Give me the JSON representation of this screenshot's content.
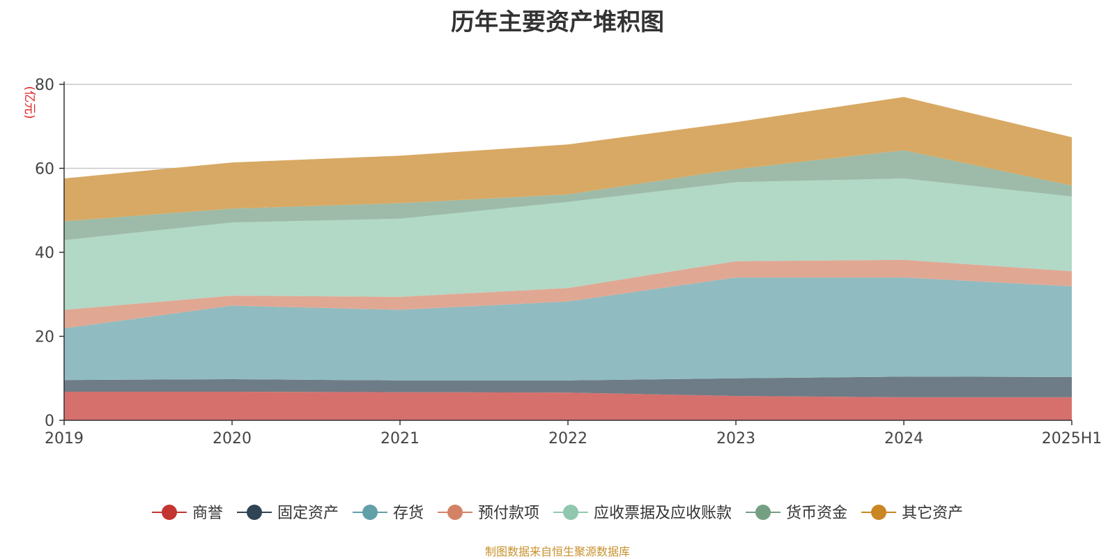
{
  "chart_data": {
    "type": "area",
    "stacked": true,
    "title": "历年主要资产堆积图",
    "ylabel": "(亿元)",
    "categories": [
      "2019",
      "2020",
      "2021",
      "2022",
      "2023",
      "2024",
      "2025H1"
    ],
    "ylim": [
      0,
      80
    ],
    "yticks": [
      0,
      20,
      40,
      60,
      80
    ],
    "grid": true,
    "legend_position": "bottom",
    "series": [
      {
        "name": "商誉",
        "color": "#c23531",
        "fill": "#d6706d",
        "values": [
          6.8,
          6.8,
          6.7,
          6.6,
          5.8,
          5.5,
          5.5
        ]
      },
      {
        "name": "固定资产",
        "color": "#2f4554",
        "fill": "#6d7c86",
        "values": [
          2.8,
          3.0,
          2.8,
          2.9,
          4.2,
          4.9,
          4.8
        ]
      },
      {
        "name": "存货",
        "color": "#61a0a8",
        "fill": "#90bbc1",
        "values": [
          12.3,
          17.5,
          16.8,
          18.8,
          24.0,
          23.6,
          21.6
        ]
      },
      {
        "name": "预付款项",
        "color": "#d48265",
        "fill": "#e0a893",
        "values": [
          4.4,
          2.4,
          3.1,
          3.2,
          3.9,
          4.2,
          3.6
        ]
      },
      {
        "name": "应收票据及应收账款",
        "color": "#91c7ae",
        "fill": "#b2d8c6",
        "values": [
          16.6,
          17.4,
          18.6,
          20.5,
          18.8,
          19.4,
          17.8
        ]
      },
      {
        "name": "货币资金",
        "color": "#749f83",
        "fill": "#9dbba8",
        "values": [
          4.5,
          3.3,
          3.7,
          1.8,
          3.1,
          6.7,
          2.6
        ]
      },
      {
        "name": "其它资产",
        "color": "#ca8622",
        "fill": "#d8a964",
        "values": [
          10.2,
          11.0,
          11.3,
          11.9,
          11.2,
          12.7,
          11.5
        ]
      }
    ]
  },
  "footer": {
    "source_text": "制图数据来自恒生聚源数据库"
  }
}
